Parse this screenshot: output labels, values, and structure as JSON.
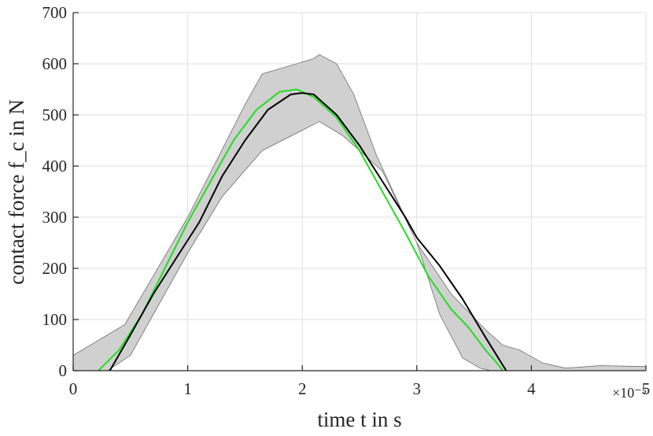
{
  "chart_data": {
    "type": "line",
    "xlabel": "time t in s",
    "ylabel": "contact force f_c in N",
    "x_multiplier": "×10⁻⁵",
    "xlim": [
      0,
      5
    ],
    "ylim": [
      0,
      700
    ],
    "xticks": [
      "0",
      "1",
      "2",
      "3",
      "4",
      "5"
    ],
    "yticks": [
      "0",
      "100",
      "200",
      "300",
      "400",
      "500",
      "600",
      "700"
    ],
    "xtick_values": [
      0,
      1,
      2,
      3,
      4,
      5
    ],
    "ytick_values": [
      0,
      100,
      200,
      300,
      400,
      500,
      600,
      700
    ],
    "grid": true,
    "legend": "none",
    "band": {
      "color": "#d0d0d0",
      "edge_color": "#6e6e6e",
      "upper": {
        "x": [
          0,
          0.45,
          1.0,
          1.5,
          1.65,
          2.1,
          2.15,
          2.3,
          2.45,
          2.65,
          3.0,
          3.3,
          3.6,
          3.75,
          3.9,
          4.1,
          4.3,
          4.6,
          5.0
        ],
        "y": [
          30,
          90,
          300,
          520,
          580,
          610,
          618,
          600,
          540,
          420,
          250,
          150,
          80,
          50,
          40,
          15,
          5,
          10,
          8
        ]
      },
      "lower": {
        "x": [
          0,
          0.3,
          0.5,
          0.75,
          1.0,
          1.3,
          1.65,
          2.0,
          2.15,
          2.35,
          2.7,
          3.0,
          3.2,
          3.4,
          3.55,
          3.65,
          5.0
        ],
        "y": [
          0,
          0,
          30,
          130,
          230,
          340,
          430,
          470,
          487,
          460,
          390,
          250,
          110,
          25,
          5,
          0,
          0
        ]
      }
    },
    "series": [
      {
        "color": "#22dd22",
        "x": [
          0.22,
          0.4,
          0.6,
          0.8,
          1.0,
          1.2,
          1.4,
          1.6,
          1.8,
          1.95,
          2.1,
          2.3,
          2.5,
          2.7,
          2.9,
          3.1,
          3.3,
          3.45,
          3.6,
          3.7,
          3.75
        ],
        "y": [
          0,
          40,
          110,
          200,
          290,
          370,
          450,
          510,
          545,
          550,
          535,
          495,
          430,
          350,
          270,
          185,
          120,
          85,
          40,
          15,
          0
        ]
      },
      {
        "color": "#000000",
        "x": [
          0.32,
          0.5,
          0.7,
          0.9,
          1.1,
          1.3,
          1.5,
          1.7,
          1.9,
          2.0,
          2.1,
          2.3,
          2.5,
          2.7,
          2.9,
          3.0,
          3.2,
          3.4,
          3.6,
          3.78
        ],
        "y": [
          0,
          70,
          150,
          220,
          290,
          380,
          450,
          510,
          540,
          543,
          540,
          500,
          440,
          370,
          300,
          260,
          205,
          140,
          65,
          0
        ]
      }
    ]
  }
}
